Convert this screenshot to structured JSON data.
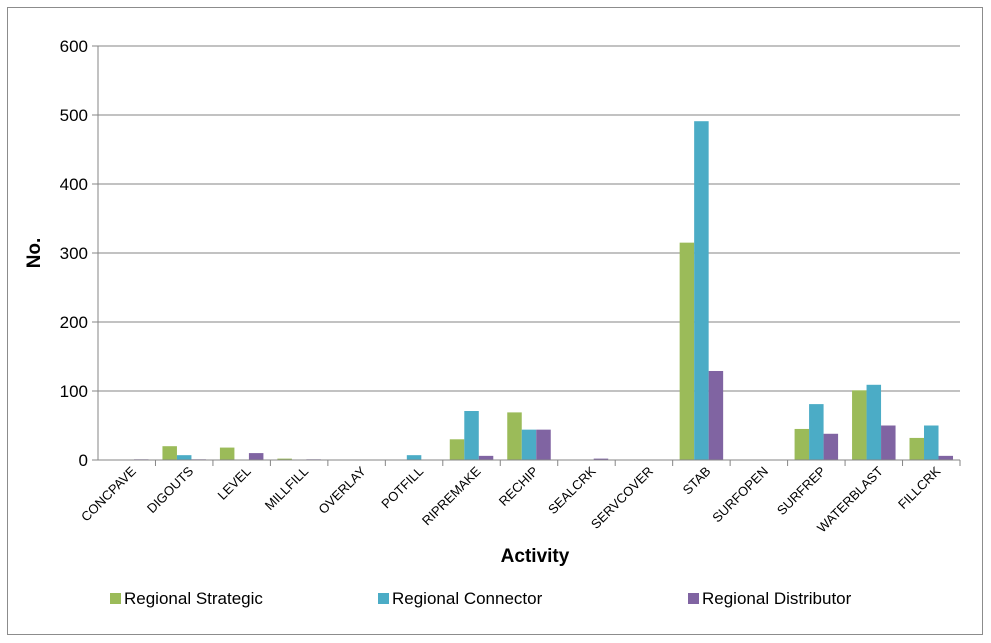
{
  "chart_data": {
    "type": "bar",
    "title": "",
    "xlabel": "Activity",
    "ylabel": "No.",
    "ylim": [
      0,
      600
    ],
    "yticks": [
      "0",
      "100",
      "200",
      "300",
      "400",
      "500",
      "600"
    ],
    "grid": true,
    "legend_position": "bottom",
    "categories": [
      "CONCPAVE",
      "DIGOUTS",
      "LEVEL",
      "MILLFILL",
      "OVERLAY",
      "POTFILL",
      "RIPREMAKE",
      "RECHIP",
      "SEALCRK",
      "SERVCOVER",
      "STAB",
      "SURFOPEN",
      "SURFREP",
      "WATERBLAST",
      "FILLCRK"
    ],
    "series": [
      {
        "name": "Regional Strategic",
        "color": "#9bbb59",
        "values": [
          0,
          20,
          18,
          2,
          0,
          0,
          30,
          69,
          0,
          0,
          315,
          0,
          45,
          101,
          32
        ]
      },
      {
        "name": "Regional Connector",
        "color": "#4bacc6",
        "values": [
          0,
          7,
          0,
          0,
          0,
          7,
          71,
          44,
          0,
          0,
          491,
          0,
          81,
          109,
          50
        ]
      },
      {
        "name": "Regional Distributor",
        "color": "#8064a2",
        "values": [
          1,
          1,
          10,
          1,
          0,
          0,
          6,
          44,
          2,
          0,
          129,
          0,
          38,
          50,
          6
        ]
      }
    ]
  }
}
